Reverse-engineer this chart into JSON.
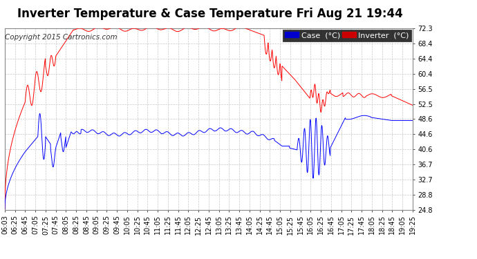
{
  "title": "Inverter Temperature & Case Temperature Fri Aug 21 19:44",
  "copyright": "Copyright 2015 Cartronics.com",
  "background_color": "#ffffff",
  "plot_bg_color": "#ffffff",
  "grid_color": "#c8c8c8",
  "yticks": [
    24.8,
    28.8,
    32.7,
    36.7,
    40.6,
    44.6,
    48.6,
    52.5,
    56.5,
    60.4,
    64.4,
    68.4,
    72.3
  ],
  "xtick_labels": [
    "06:03",
    "06:25",
    "06:45",
    "07:05",
    "07:25",
    "07:45",
    "08:05",
    "08:25",
    "08:45",
    "09:05",
    "09:25",
    "09:45",
    "10:05",
    "10:25",
    "10:45",
    "11:05",
    "11:25",
    "11:45",
    "12:05",
    "12:25",
    "12:45",
    "13:05",
    "13:25",
    "13:45",
    "14:05",
    "14:25",
    "14:45",
    "15:05",
    "15:25",
    "15:45",
    "16:05",
    "16:25",
    "16:45",
    "17:05",
    "17:25",
    "17:45",
    "18:05",
    "18:25",
    "18:45",
    "19:05",
    "19:25"
  ],
  "case_color": "#0000ff",
  "inverter_color": "#ff0000",
  "title_fontsize": 12,
  "tick_fontsize": 7,
  "copyright_fontsize": 7.5,
  "legend_fontsize": 8
}
